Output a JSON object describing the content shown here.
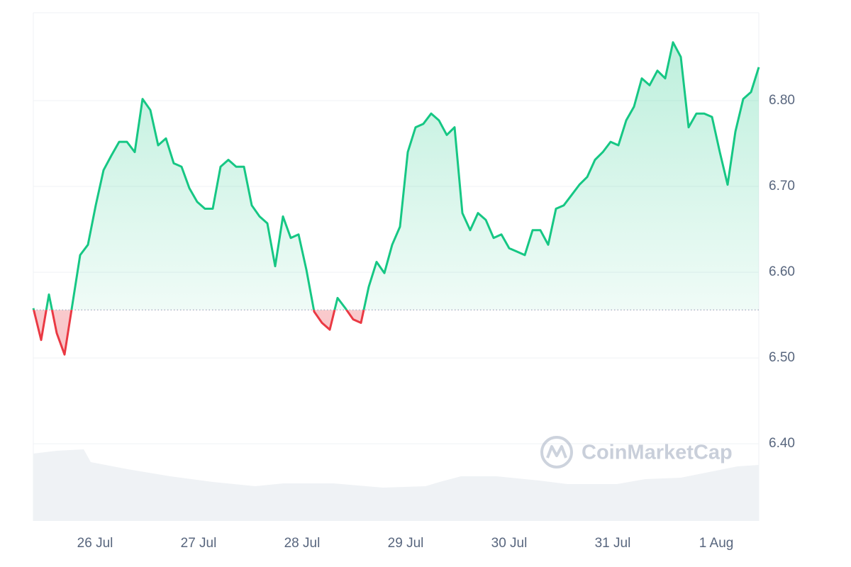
{
  "chart_data": {
    "type": "line",
    "watermark": "CoinMarketCap",
    "values": [
      6.558,
      6.521,
      6.574,
      6.529,
      6.504,
      6.562,
      6.62,
      6.632,
      6.678,
      6.719,
      6.736,
      6.752,
      6.752,
      6.74,
      6.802,
      6.789,
      6.748,
      6.756,
      6.727,
      6.723,
      6.698,
      6.682,
      6.674,
      6.674,
      6.723,
      6.731,
      6.723,
      6.723,
      6.678,
      6.665,
      6.657,
      6.607,
      6.665,
      6.64,
      6.644,
      6.603,
      6.554,
      6.541,
      6.533,
      6.57,
      6.558,
      6.545,
      6.541,
      6.583,
      6.612,
      6.599,
      6.632,
      6.653,
      6.74,
      6.769,
      6.773,
      6.785,
      6.777,
      6.76,
      6.769,
      6.669,
      6.649,
      6.669,
      6.661,
      6.64,
      6.644,
      6.628,
      6.624,
      6.62,
      6.649,
      6.649,
      6.632,
      6.674,
      6.678,
      6.69,
      6.702,
      6.711,
      6.731,
      6.74,
      6.752,
      6.748,
      6.777,
      6.793,
      6.826,
      6.818,
      6.835,
      6.826,
      6.868,
      6.851,
      6.769,
      6.785,
      6.785,
      6.781,
      6.74,
      6.702,
      6.764,
      6.802,
      6.81,
      6.839
    ],
    "baseline": 6.556,
    "up_color": "#16c784",
    "down_color": "#ea3943",
    "xlim": [
      0,
      93
    ],
    "xticks": [
      {
        "value": 7.91,
        "label": "26 Jul"
      },
      {
        "value": 21.18,
        "label": "27 Jul"
      },
      {
        "value": 34.45,
        "label": "28 Jul"
      },
      {
        "value": 47.73,
        "label": "29 Jul"
      },
      {
        "value": 61.0,
        "label": "30 Jul"
      },
      {
        "value": 74.27,
        "label": "31 Jul"
      },
      {
        "value": 87.55,
        "label": "1 Aug"
      }
    ],
    "ylim": [
      6.31,
      6.9025
    ],
    "yticks": [
      {
        "value": 6.4,
        "label": "6.40"
      },
      {
        "value": 6.5,
        "label": "6.50"
      },
      {
        "value": 6.6,
        "label": "6.60"
      },
      {
        "value": 6.7,
        "label": "6.70"
      },
      {
        "value": 6.8,
        "label": "6.80"
      }
    ],
    "grid": true
  }
}
